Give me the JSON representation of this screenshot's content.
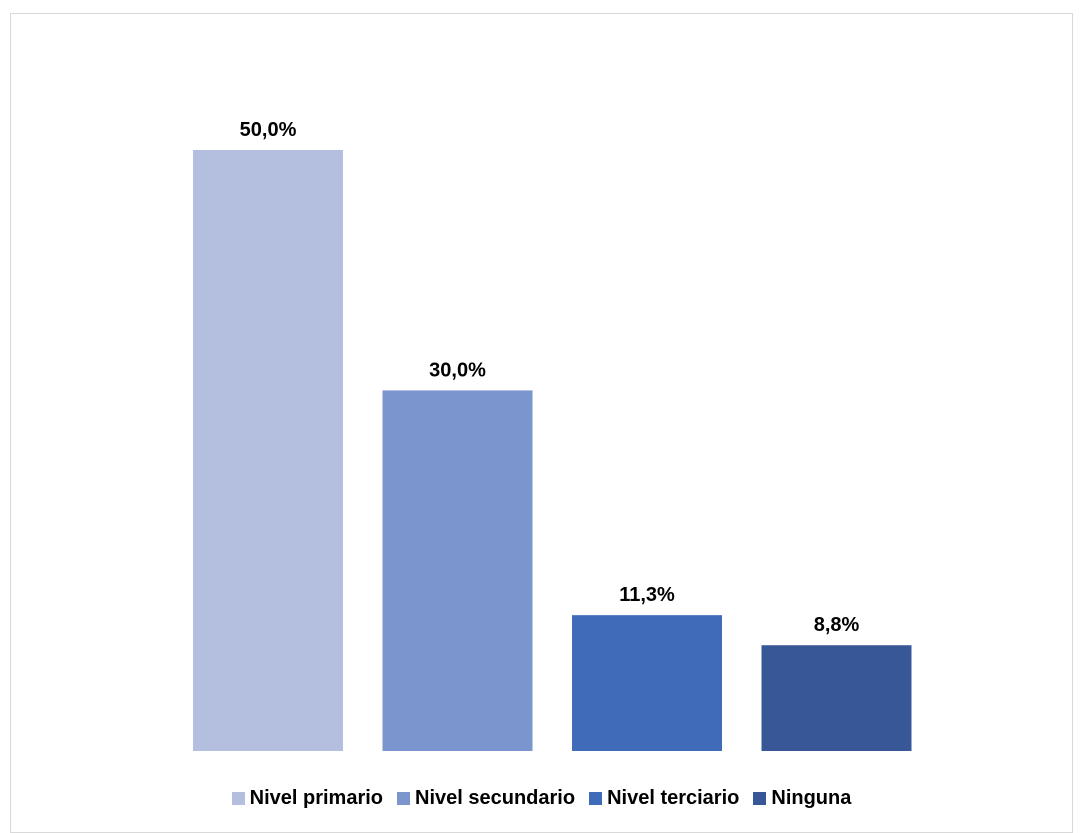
{
  "chart_data": {
    "type": "bar",
    "title": "",
    "xlabel": "",
    "ylabel": "",
    "categories": [
      "Nivel primario",
      "Nivel secundario",
      "Nivel terciario",
      "Ninguna"
    ],
    "values": [
      50.0,
      30.0,
      11.3,
      8.8
    ],
    "value_labels": [
      "50,0%",
      "30,0%",
      "11,3%",
      "8,8%"
    ],
    "colors": [
      "#b4bfe0",
      "#7b95cf",
      "#3f6bb8",
      "#375797"
    ],
    "ylim": [
      0,
      50
    ],
    "grid": false,
    "legend_position": "bottom",
    "legend": [
      {
        "label": "Nivel primario",
        "color": "#b4bfe0"
      },
      {
        "label": "Nivel secundario",
        "color": "#7b95cf"
      },
      {
        "label": "Nivel terciario",
        "color": "#3f6bb8"
      },
      {
        "label": "Ninguna",
        "color": "#375797"
      }
    ]
  }
}
